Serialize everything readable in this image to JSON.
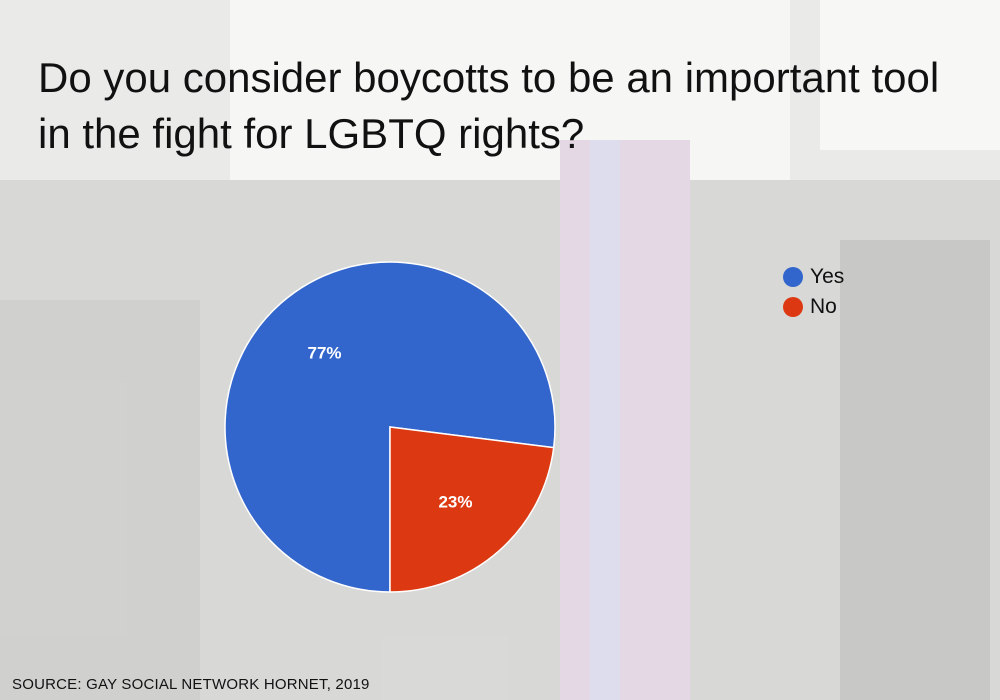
{
  "chart_data": {
    "type": "pie",
    "title": "Do you consider boycotts to be an important tool in the fight for LGBTQ rights?",
    "categories": [
      "Yes",
      "No"
    ],
    "values": [
      77,
      23
    ],
    "value_labels": [
      "77%",
      "23%"
    ],
    "colors": [
      "#3366cc",
      "#dc3912"
    ],
    "legend_position": "right"
  },
  "source": "SOURCE: GAY SOCIAL NETWORK HORNET, 2019"
}
